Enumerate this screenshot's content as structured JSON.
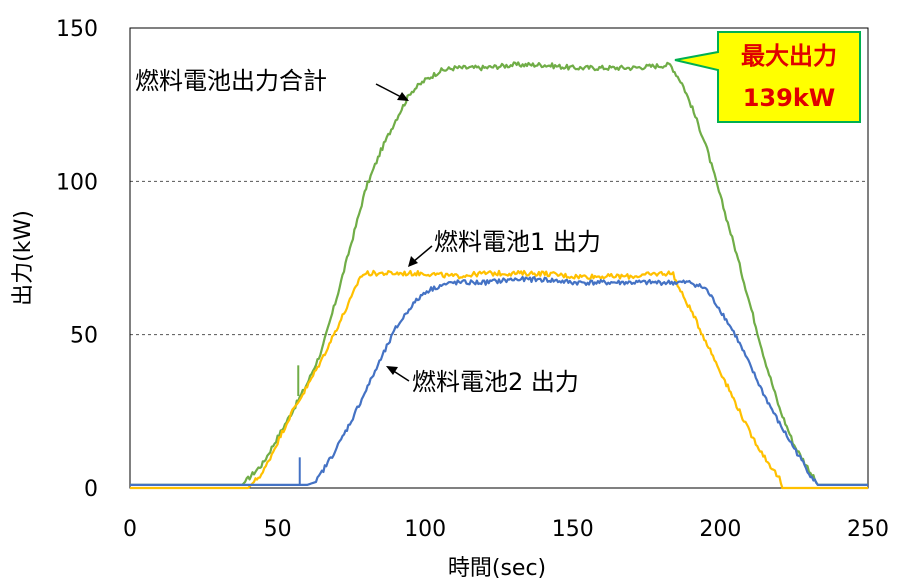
{
  "chart_data": {
    "type": "line",
    "xlabel": "時間(sec)",
    "ylabel": "出力(kW)",
    "xlim": [
      0,
      250
    ],
    "ylim": [
      0,
      150
    ],
    "xticks": [
      "0",
      "50",
      "100",
      "150",
      "200",
      "250"
    ],
    "yticks": [
      "0",
      "50",
      "100",
      "150"
    ],
    "grid": "horizontal dashed",
    "series": [
      {
        "name": "燃料電池出力合計",
        "color": "#70ad47",
        "x": [
          0,
          38,
          45,
          55,
          60,
          65,
          70,
          75,
          80,
          85,
          90,
          95,
          100,
          105,
          110,
          120,
          130,
          140,
          150,
          160,
          170,
          183,
          187,
          190,
          195,
          200,
          205,
          210,
          215,
          220,
          225,
          230,
          233,
          240,
          250
        ],
        "y": [
          1,
          1,
          8,
          25,
          34,
          45,
          62,
          80,
          98,
          110,
          120,
          129,
          133,
          136,
          137,
          137,
          138,
          138,
          137,
          137,
          137,
          138,
          132,
          125,
          112,
          95,
          78,
          60,
          42,
          26,
          14,
          6,
          1,
          1,
          1
        ]
      },
      {
        "name": "燃料電池1 出力",
        "color": "#ffc000",
        "x": [
          0,
          40,
          45,
          55,
          60,
          65,
          70,
          75,
          78,
          80,
          90,
          100,
          110,
          120,
          130,
          140,
          150,
          160,
          170,
          180,
          184,
          186,
          190,
          195,
          200,
          205,
          210,
          215,
          220,
          221,
          230,
          250
        ],
        "y": [
          0,
          0,
          5,
          25,
          33,
          42,
          52,
          62,
          69,
          70,
          70,
          70,
          69,
          70,
          70,
          70,
          69,
          69,
          69,
          70,
          70,
          65,
          58,
          48,
          38,
          28,
          18,
          10,
          3,
          0,
          0,
          0
        ]
      },
      {
        "name": "燃料電池2 出力",
        "color": "#4472c4",
        "x": [
          0,
          60,
          63,
          70,
          75,
          80,
          85,
          90,
          95,
          100,
          105,
          110,
          120,
          130,
          140,
          150,
          160,
          170,
          180,
          190,
          195,
          200,
          205,
          210,
          215,
          220,
          225,
          230,
          233,
          250
        ],
        "y": [
          1,
          1,
          2,
          13,
          22,
          32,
          42,
          52,
          59,
          64,
          66,
          67,
          67,
          68,
          68,
          67,
          67,
          67,
          67,
          67,
          65,
          58,
          50,
          40,
          30,
          21,
          13,
          5,
          1,
          1
        ]
      }
    ],
    "annotations": {
      "total_label": "燃料電池出力合計",
      "fc1_label": "燃料電池1 出力",
      "fc2_label": "燃料電池2 出力",
      "max_title": "最大出力",
      "max_value": "139kW"
    },
    "colors": {
      "callout_fill": "#ffff00",
      "callout_border": "#00b050",
      "callout_text": "#e00000"
    }
  }
}
